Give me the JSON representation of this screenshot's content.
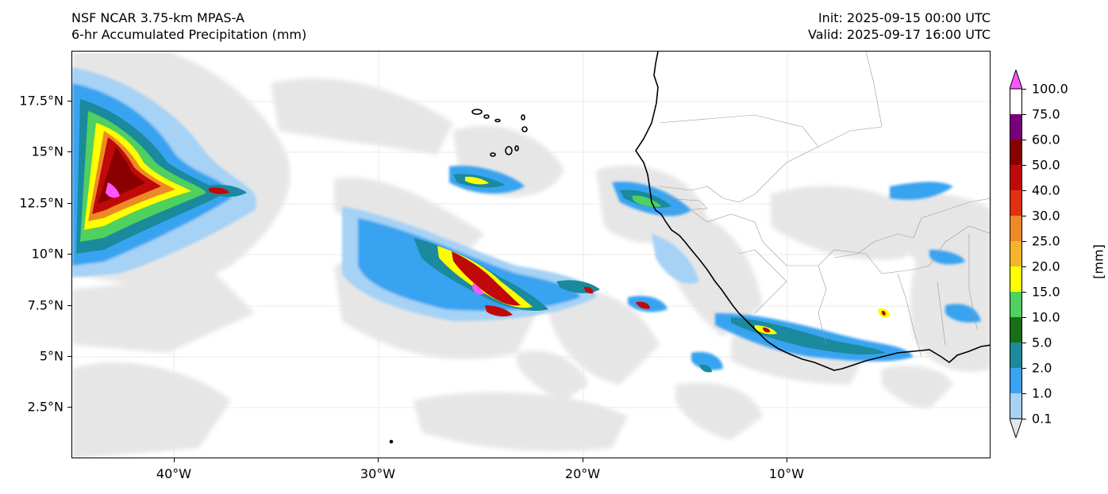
{
  "header": {
    "model": "NSF NCAR 3.75-km MPAS-A",
    "field": "6-hr Accumulated Precipitation (mm)",
    "init": "Init: 2025-09-15 00:00 UTC",
    "valid": "Valid: 2025-09-17 16:00 UTC"
  },
  "axes": {
    "lat_labels": [
      "17.5°N",
      "15°N",
      "12.5°N",
      "10°N",
      "7.5°N",
      "5°N",
      "2.5°N"
    ],
    "lon_labels": [
      "40°W",
      "30°W",
      "20°W",
      "10°W"
    ],
    "lat_range": [
      0,
      20
    ],
    "lon_range": [
      -45,
      0
    ],
    "grid": true
  },
  "colorbar": {
    "unit": "[mm]",
    "levels": [
      "0.1",
      "1.0",
      "2.0",
      "5.0",
      "10.0",
      "15.0",
      "20.0",
      "25.0",
      "30.0",
      "40.0",
      "50.0",
      "60.0",
      "75.0",
      "100.0"
    ],
    "colors": [
      "#e6e6e6",
      "#a6d2f5",
      "#39a3f0",
      "#1a8a9c",
      "#1a6e1a",
      "#4fd05f",
      "#ffff00",
      "#f5b52a",
      "#ee8a26",
      "#e1300f",
      "#c00a0a",
      "#8a0000",
      "#78007a",
      "#ff55ff"
    ]
  },
  "map": {
    "region": "Tropical eastern Atlantic and West Africa",
    "features": [
      "coastline",
      "country borders",
      "Cape Verde islands"
    ]
  }
}
